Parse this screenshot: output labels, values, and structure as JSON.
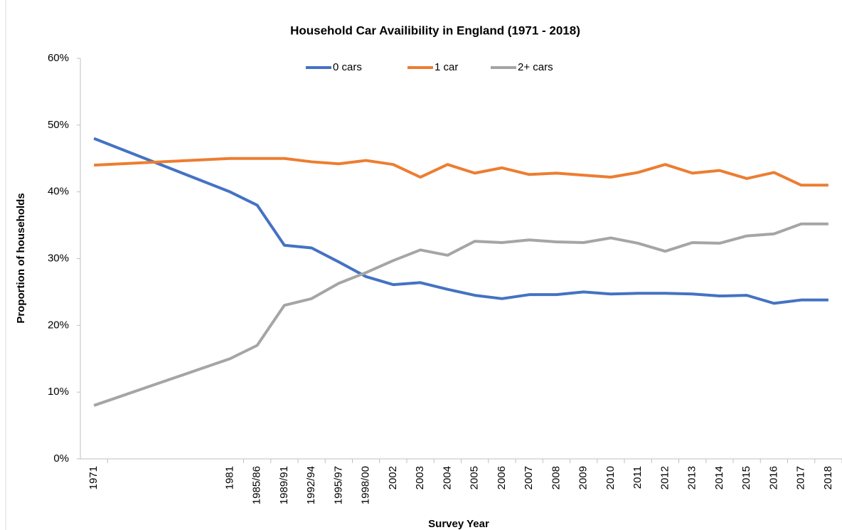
{
  "chart_data": {
    "type": "line",
    "title": "Household Car Availibility in England (1971 - 2018)",
    "x_label": "Survey Year",
    "y_label": "Proportion of households",
    "categories": [
      "1971",
      null,
      null,
      null,
      null,
      "1981",
      "1985/86",
      "1989/91",
      "1992/94",
      "1995/97",
      "1998/00",
      "2002",
      "2003",
      "2004",
      "2005",
      "2006",
      "2007",
      "2008",
      "2009",
      "2010",
      "2011",
      "2012",
      "2013",
      "2014",
      "2015",
      "2016",
      "2017",
      "2018"
    ],
    "series": [
      {
        "name": "0 cars",
        "color": "#4472c4",
        "values": [
          48,
          46.4,
          44.8,
          43.2,
          41.6,
          40,
          38,
          32,
          31.6,
          29.5,
          27.3,
          26.1,
          26.4,
          25.4,
          24.5,
          24.0,
          24.6,
          24.6,
          25.0,
          24.7,
          24.8,
          24.8,
          24.7,
          24.4,
          24.5,
          23.3,
          23.8,
          23.8
        ]
      },
      {
        "name": "1 car",
        "color": "#ed7d31",
        "values": [
          44,
          44.2,
          44.4,
          44.6,
          44.8,
          45,
          45,
          45,
          44.5,
          44.2,
          44.7,
          44.1,
          42.2,
          44.1,
          42.8,
          43.6,
          42.6,
          42.8,
          42.5,
          42.2,
          42.9,
          44.1,
          42.8,
          43.2,
          42.0,
          42.9,
          41,
          41
        ]
      },
      {
        "name": "2+ cars",
        "color": "#a5a5a5",
        "values": [
          8,
          9.4,
          10.8,
          12.2,
          13.6,
          15,
          17,
          23,
          24,
          26.3,
          27.9,
          29.7,
          31.3,
          30.5,
          32.6,
          32.4,
          32.8,
          32.5,
          32.4,
          33.1,
          32.3,
          31.1,
          32.4,
          32.3,
          33.4,
          33.7,
          35.2,
          35.2
        ]
      }
    ],
    "ylim": [
      0,
      60
    ],
    "yticks": [
      {
        "value": 0,
        "label": "0%"
      },
      {
        "value": 10,
        "label": "10%"
      },
      {
        "value": 20,
        "label": "20%"
      },
      {
        "value": 30,
        "label": "30%"
      },
      {
        "value": 40,
        "label": "40%"
      },
      {
        "value": 50,
        "label": "50%"
      },
      {
        "value": 60,
        "label": "60%"
      }
    ],
    "legend": "top",
    "grid": false
  }
}
